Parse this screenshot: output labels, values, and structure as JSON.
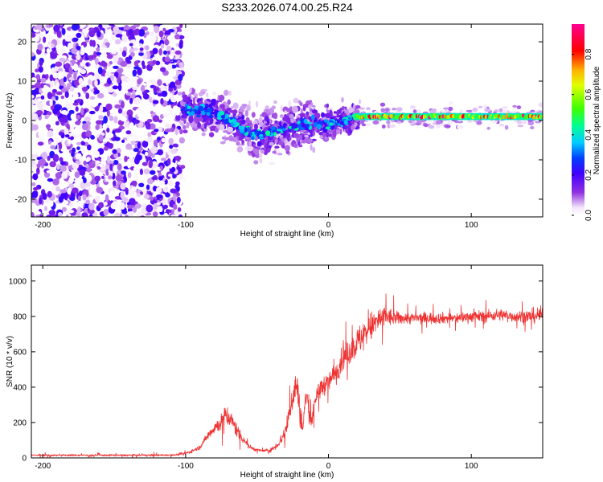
{
  "chart_data": [
    {
      "type": "heatmap",
      "title": "S233.2026.074.00.25.R24",
      "xlabel": "Height of straight line (km)",
      "ylabel": "Frequency (Hz)",
      "xlim": [
        -208,
        150
      ],
      "ylim": [
        -24.5,
        24.5
      ],
      "xticks": [
        -200,
        -100,
        0,
        100
      ],
      "yticks": [
        -20,
        -10,
        0,
        10,
        20
      ],
      "colorbar": {
        "label": "Normalized spectral amplitude",
        "range": [
          0.0,
          0.95
        ],
        "ticks": [
          0.0,
          0.2,
          0.4,
          0.6,
          0.8
        ]
      },
      "regions": [
        {
          "x_range": [
            -208,
            -102
          ],
          "description": "broadband noise, amplitude 0.0-0.25 across all frequencies"
        },
        {
          "x_range": [
            -102,
            20
          ],
          "description": "scattered signal near 0 Hz, amplitude 0.1-0.4, spreading to -10..+10 Hz"
        },
        {
          "x_range": [
            20,
            150
          ],
          "description": "narrow stable tone near +1 Hz, amplitude 0.4-0.95"
        }
      ],
      "ridge": {
        "x": [
          -100,
          -80,
          -60,
          -50,
          -40,
          -20,
          0,
          10,
          20,
          40,
          60,
          80,
          100,
          120,
          150
        ],
        "freq_hz": [
          3,
          2,
          -2,
          -4,
          -3,
          -1,
          -1,
          0,
          1,
          1,
          1,
          1,
          1,
          1,
          1
        ]
      }
    },
    {
      "type": "line",
      "xlabel": "Height of straight line (km)",
      "ylabel": "SNR (10 * v/v)",
      "xlim": [
        -208,
        150
      ],
      "ylim": [
        0,
        1090
      ],
      "xticks": [
        -200,
        -100,
        0,
        100
      ],
      "yticks": [
        0,
        200,
        400,
        600,
        800,
        1000
      ],
      "series": [
        {
          "name": "SNR",
          "color": "#ee3333",
          "x": [
            -208,
            -180,
            -150,
            -120,
            -105,
            -98,
            -90,
            -85,
            -80,
            -75,
            -72,
            -70,
            -68,
            -65,
            -60,
            -55,
            -50,
            -45,
            -40,
            -35,
            -30,
            -28,
            -25,
            -22,
            -20,
            -18,
            -16,
            -14,
            -12,
            -10,
            -5,
            0,
            5,
            10,
            15,
            20,
            25,
            30,
            35,
            40,
            45,
            50,
            55,
            60,
            70,
            80,
            90,
            100,
            110,
            120,
            130,
            140,
            150
          ],
          "values": [
            15,
            15,
            15,
            15,
            18,
            30,
            60,
            120,
            170,
            200,
            250,
            230,
            210,
            170,
            110,
            60,
            45,
            40,
            45,
            80,
            150,
            230,
            350,
            420,
            250,
            150,
            350,
            300,
            180,
            320,
            400,
            430,
            480,
            560,
            600,
            650,
            700,
            740,
            780,
            800,
            790,
            790,
            790,
            790,
            790,
            790,
            790,
            800,
            800,
            810,
            800,
            800,
            810
          ],
          "noise_amplitude": [
            10,
            10,
            10,
            10,
            10,
            15,
            20,
            40,
            60,
            90,
            100,
            100,
            90,
            80,
            50,
            25,
            15,
            15,
            20,
            40,
            80,
            120,
            150,
            200,
            120,
            80,
            150,
            120,
            80,
            120,
            100,
            100,
            110,
            120,
            130,
            150,
            160,
            150,
            140,
            110,
            80,
            60,
            60,
            60,
            60,
            55,
            55,
            55,
            60,
            60,
            60,
            70,
            80
          ]
        }
      ]
    }
  ]
}
